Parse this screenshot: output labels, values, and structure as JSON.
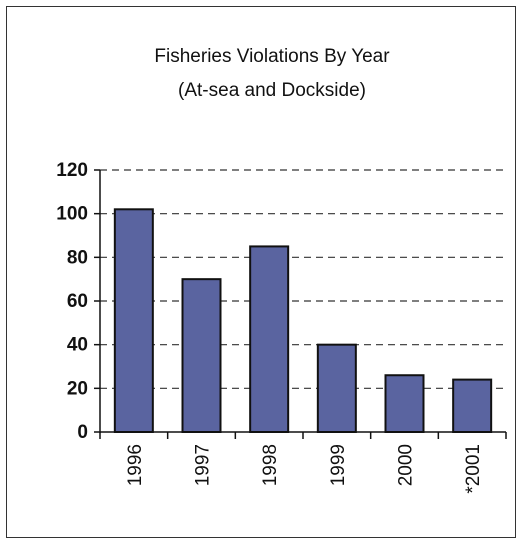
{
  "chart_data": {
    "type": "bar",
    "title": [
      "Fisheries Violations By Year",
      "(At-sea and Dockside)"
    ],
    "categories": [
      "1996",
      "1997",
      "1998",
      "1999",
      "2000",
      "*2001"
    ],
    "values": [
      102,
      70,
      85,
      40,
      26,
      24
    ],
    "xlabel": "",
    "ylabel": "",
    "ylim": [
      0,
      120
    ],
    "yticks": [
      0,
      20,
      40,
      60,
      80,
      100,
      120
    ],
    "grid": "dashed horizontal",
    "legend": "none",
    "colors": {
      "bar": "#5a64a0",
      "bar_edge": "#111111",
      "grid": "#333333"
    }
  }
}
